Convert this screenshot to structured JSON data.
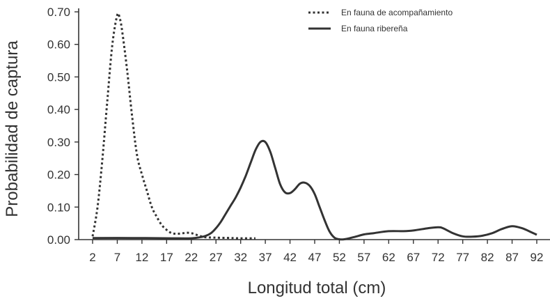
{
  "chart_data": {
    "type": "line",
    "title": "",
    "xlabel": "Longitud total (cm)",
    "ylabel": "Probabilidad de captura",
    "xlim": [
      2,
      92
    ],
    "ylim": [
      0,
      0.7
    ],
    "xticks": [
      "2",
      "7",
      "12",
      "17",
      "22",
      "27",
      "32",
      "37",
      "42",
      "47",
      "52",
      "57",
      "62",
      "67",
      "72",
      "77",
      "82",
      "87",
      "92"
    ],
    "yticks": [
      "0.00",
      "0.10",
      "0.20",
      "0.30",
      "0.40",
      "0.50",
      "0.60",
      "0.70"
    ],
    "grid": false,
    "legend": "top-right",
    "series": [
      {
        "name": "En fauna de acompañamiento",
        "style": "dotted",
        "x": [
          2,
          3,
          4,
          5,
          6,
          7,
          7.5,
          8,
          9,
          10,
          11,
          12,
          13,
          14,
          15,
          16,
          17,
          18,
          19,
          20,
          21,
          22,
          23,
          24,
          25,
          27,
          30,
          32,
          35
        ],
        "y": [
          0.01,
          0.1,
          0.25,
          0.43,
          0.6,
          0.69,
          0.68,
          0.64,
          0.52,
          0.38,
          0.26,
          0.2,
          0.15,
          0.1,
          0.07,
          0.045,
          0.03,
          0.02,
          0.018,
          0.019,
          0.021,
          0.02,
          0.015,
          0.01,
          0.007,
          0.006,
          0.005,
          0.004,
          0.004
        ]
      },
      {
        "name": "En fauna ribereña",
        "style": "solid",
        "x": [
          2,
          10,
          18,
          22,
          24,
          25,
          26,
          27,
          28,
          29,
          30,
          31,
          32,
          33,
          34,
          35,
          36,
          37,
          38,
          39,
          40,
          41,
          42,
          43,
          44,
          45,
          46,
          47,
          48,
          49,
          50,
          51,
          52,
          53,
          55,
          57,
          59,
          62,
          65,
          67,
          70,
          72,
          73,
          75,
          77,
          79,
          81,
          83,
          85,
          87,
          89,
          91,
          92
        ],
        "y": [
          0.005,
          0.005,
          0.004,
          0.004,
          0.008,
          0.012,
          0.02,
          0.035,
          0.055,
          0.08,
          0.105,
          0.13,
          0.16,
          0.195,
          0.235,
          0.275,
          0.3,
          0.3,
          0.27,
          0.22,
          0.17,
          0.145,
          0.143,
          0.155,
          0.172,
          0.175,
          0.165,
          0.14,
          0.1,
          0.06,
          0.025,
          0.006,
          0.001,
          0.001,
          0.008,
          0.016,
          0.02,
          0.026,
          0.026,
          0.028,
          0.035,
          0.038,
          0.035,
          0.02,
          0.01,
          0.009,
          0.012,
          0.02,
          0.033,
          0.041,
          0.035,
          0.022,
          0.015
        ]
      }
    ]
  }
}
